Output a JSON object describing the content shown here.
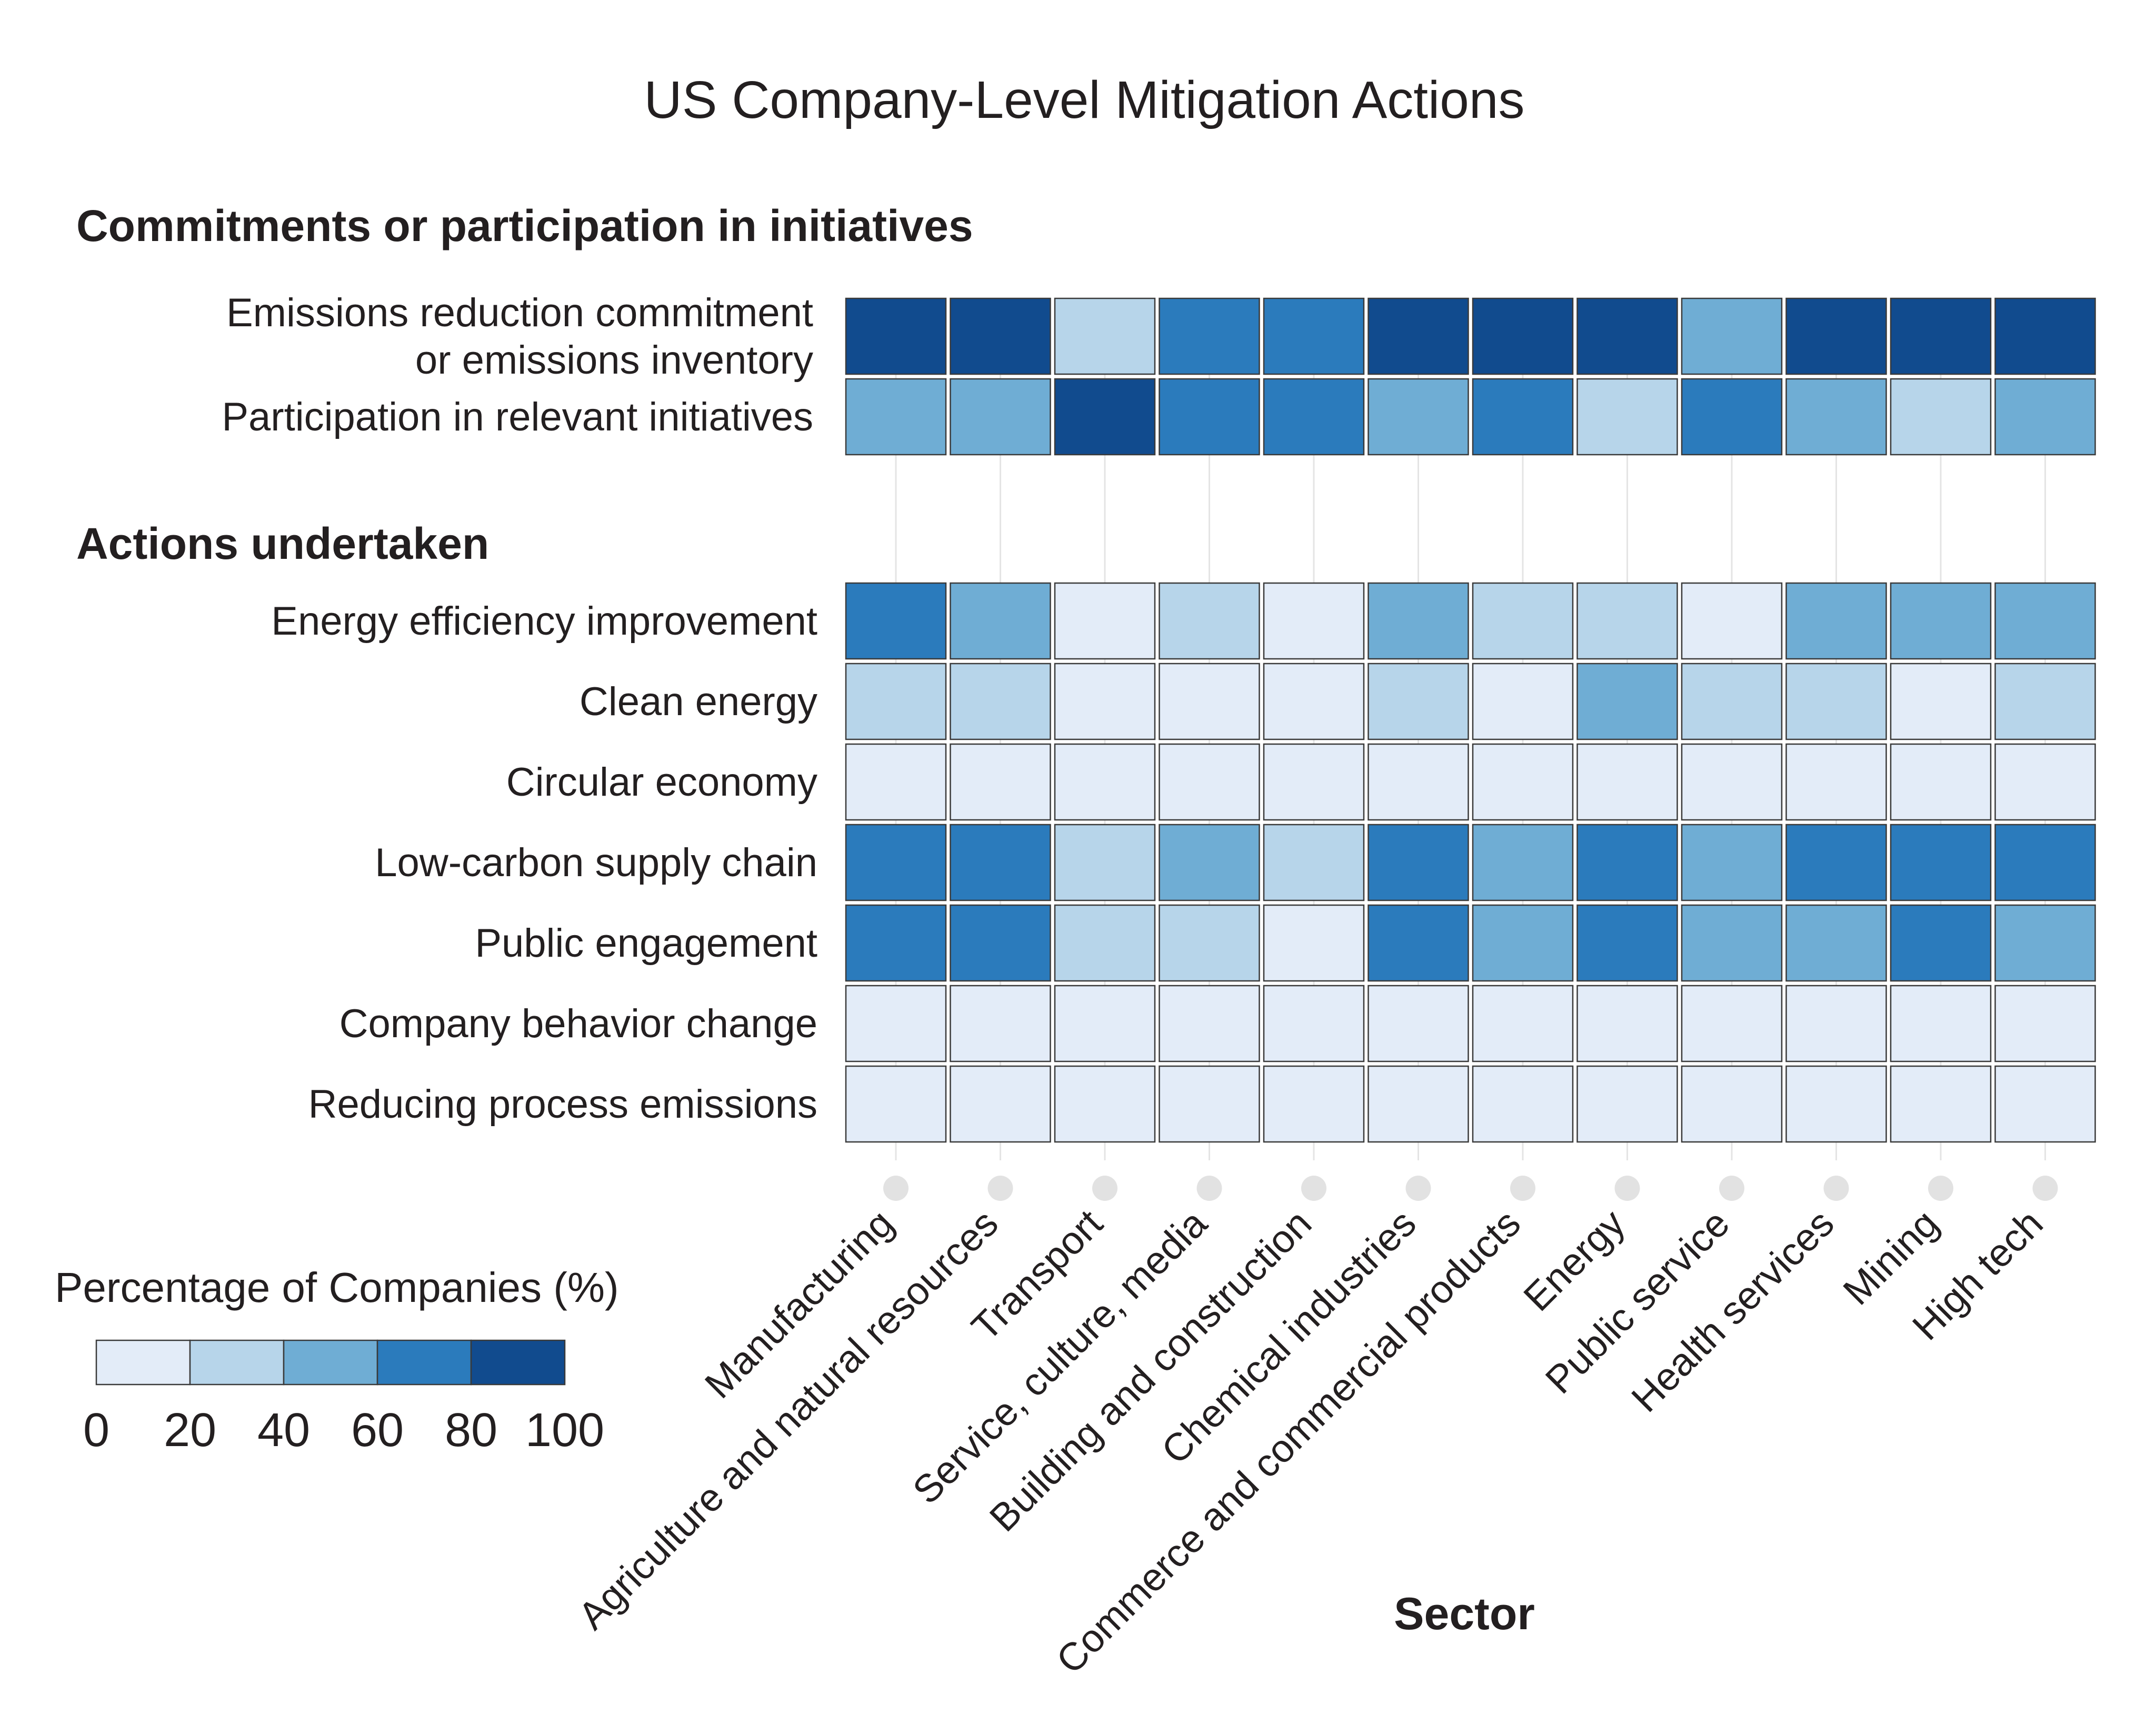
{
  "chart_data": {
    "type": "heatmap",
    "title": "US Company-Level Mitigation Actions",
    "xlabel": "Sector",
    "ylabel": "",
    "categories": [
      "Manufacturing",
      "Agriculture and natural resources",
      "Transport",
      "Service, culture, media",
      "Building and construction",
      "Chemical industries",
      "Commerce and commercial products",
      "Energy",
      "Public service",
      "Health services",
      "Mining",
      "High tech"
    ],
    "groups": [
      {
        "name": "Commitments or participation in initiatives",
        "rows": [
          {
            "name": "Emissions reduction commitment or emissions inventory",
            "label_lines": [
              "Emissions reduction commitment",
              "or emissions inventory"
            ],
            "values": [
              90,
              90,
              30,
              70,
              70,
              90,
              90,
              90,
              50,
              90,
              90,
              90
            ]
          },
          {
            "name": "Participation in relevant initiatives",
            "label_lines": [
              "Participation in relevant initiatives"
            ],
            "values": [
              50,
              50,
              90,
              70,
              70,
              50,
              70,
              30,
              70,
              50,
              30,
              50
            ]
          }
        ]
      },
      {
        "name": "Actions undertaken",
        "rows": [
          {
            "name": "Energy efficiency improvement",
            "label_lines": [
              "Energy efficiency improvement"
            ],
            "values": [
              70,
              50,
              10,
              30,
              10,
              50,
              30,
              30,
              10,
              50,
              50,
              50
            ]
          },
          {
            "name": "Clean energy",
            "label_lines": [
              "Clean energy"
            ],
            "values": [
              30,
              30,
              10,
              10,
              10,
              30,
              10,
              50,
              30,
              30,
              10,
              30
            ]
          },
          {
            "name": "Circular economy",
            "label_lines": [
              "Circular economy"
            ],
            "values": [
              10,
              10,
              10,
              10,
              10,
              10,
              10,
              10,
              10,
              10,
              10,
              10
            ]
          },
          {
            "name": "Low-carbon supply chain",
            "label_lines": [
              "Low-carbon supply chain"
            ],
            "values": [
              70,
              70,
              30,
              50,
              30,
              70,
              50,
              70,
              50,
              70,
              70,
              70
            ]
          },
          {
            "name": "Public engagement",
            "label_lines": [
              "Public engagement"
            ],
            "values": [
              70,
              70,
              30,
              30,
              10,
              70,
              50,
              70,
              50,
              50,
              70,
              50
            ]
          },
          {
            "name": "Company behavior change",
            "label_lines": [
              "Company behavior change"
            ],
            "values": [
              10,
              10,
              10,
              10,
              10,
              10,
              10,
              10,
              10,
              10,
              10,
              10
            ]
          },
          {
            "name": "Reducing process emissions",
            "label_lines": [
              "Reducing process emissions"
            ],
            "values": [
              10,
              10,
              10,
              10,
              10,
              10,
              10,
              10,
              10,
              10,
              10,
              10
            ]
          }
        ]
      }
    ],
    "legend": {
      "title": "Percentage of Companies (%)",
      "ticks": [
        "0",
        "20",
        "40",
        "60",
        "80",
        "100"
      ],
      "bins": [
        [
          0,
          20
        ],
        [
          20,
          40
        ],
        [
          40,
          60
        ],
        [
          60,
          80
        ],
        [
          80,
          100
        ]
      ],
      "colors": [
        "#e3ecf8",
        "#b7d5ea",
        "#6fadd4",
        "#2b7bbc",
        "#114b8e"
      ],
      "placement": "bottom-left"
    },
    "colorscale_range": [
      0,
      100
    ]
  }
}
